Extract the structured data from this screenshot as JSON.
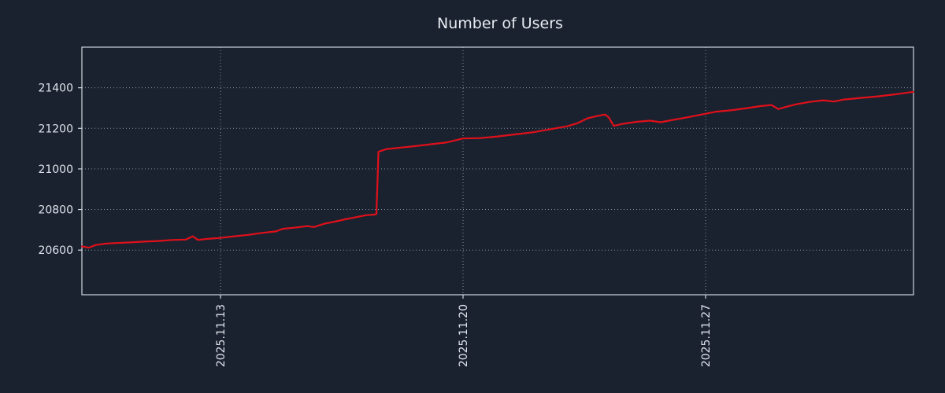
{
  "chart_data": {
    "type": "line",
    "title": "Number of Users",
    "xlabel": "",
    "ylabel": "",
    "grid": "dotted",
    "legend": "none",
    "background_color": "#1a2230",
    "axis_color": "#cdd5de",
    "text_color": "#dde3ea",
    "x_unit": "day of 2025.11 (continuing past 30 into December)",
    "x_domain": [
      9,
      33
    ],
    "x_ticks": [
      {
        "pos": 13,
        "label": "2025.11.13"
      },
      {
        "pos": 20,
        "label": "2025.11.20"
      },
      {
        "pos": 27,
        "label": "2025.11.27"
      }
    ],
    "y_ticks": [
      {
        "pos": 20600,
        "label": "20600"
      },
      {
        "pos": 20800,
        "label": "20800"
      },
      {
        "pos": 21000,
        "label": "21000"
      },
      {
        "pos": 21200,
        "label": "21200"
      },
      {
        "pos": 21400,
        "label": "21400"
      }
    ],
    "ylim": [
      20380,
      21600
    ],
    "series": [
      {
        "name": "Number of Users",
        "color": "#e0101a",
        "points": [
          [
            9.0,
            20618
          ],
          [
            9.2,
            20612
          ],
          [
            9.4,
            20625
          ],
          [
            9.7,
            20632
          ],
          [
            10.0,
            20635
          ],
          [
            10.4,
            20638
          ],
          [
            10.8,
            20642
          ],
          [
            11.2,
            20645
          ],
          [
            11.6,
            20650
          ],
          [
            12.0,
            20652
          ],
          [
            12.2,
            20668
          ],
          [
            12.35,
            20650
          ],
          [
            12.6,
            20655
          ],
          [
            13.0,
            20660
          ],
          [
            13.4,
            20668
          ],
          [
            13.8,
            20675
          ],
          [
            14.2,
            20685
          ],
          [
            14.6,
            20692
          ],
          [
            14.8,
            20705
          ],
          [
            15.2,
            20712
          ],
          [
            15.5,
            20718
          ],
          [
            15.7,
            20714
          ],
          [
            16.0,
            20730
          ],
          [
            16.3,
            20740
          ],
          [
            16.6,
            20752
          ],
          [
            17.0,
            20765
          ],
          [
            17.2,
            20772
          ],
          [
            17.45,
            20775
          ],
          [
            17.5,
            20778
          ],
          [
            17.56,
            21085
          ],
          [
            17.8,
            21098
          ],
          [
            18.2,
            21105
          ],
          [
            18.6,
            21112
          ],
          [
            19.0,
            21120
          ],
          [
            19.5,
            21130
          ],
          [
            20.0,
            21150
          ],
          [
            20.5,
            21152
          ],
          [
            21.0,
            21160
          ],
          [
            21.5,
            21170
          ],
          [
            22.0,
            21180
          ],
          [
            22.5,
            21195
          ],
          [
            23.0,
            21210
          ],
          [
            23.3,
            21225
          ],
          [
            23.6,
            21250
          ],
          [
            23.9,
            21262
          ],
          [
            24.1,
            21268
          ],
          [
            24.2,
            21255
          ],
          [
            24.35,
            21212
          ],
          [
            24.6,
            21222
          ],
          [
            25.0,
            21232
          ],
          [
            25.4,
            21238
          ],
          [
            25.7,
            21230
          ],
          [
            26.0,
            21240
          ],
          [
            26.5,
            21255
          ],
          [
            27.0,
            21272
          ],
          [
            27.3,
            21282
          ],
          [
            27.8,
            21290
          ],
          [
            28.2,
            21300
          ],
          [
            28.6,
            21310
          ],
          [
            28.9,
            21315
          ],
          [
            29.1,
            21295
          ],
          [
            29.3,
            21305
          ],
          [
            29.6,
            21318
          ],
          [
            30.0,
            21330
          ],
          [
            30.4,
            21338
          ],
          [
            30.7,
            21332
          ],
          [
            31.0,
            21342
          ],
          [
            31.5,
            21350
          ],
          [
            32.0,
            21358
          ],
          [
            32.5,
            21368
          ],
          [
            33.0,
            21380
          ]
        ]
      }
    ]
  }
}
